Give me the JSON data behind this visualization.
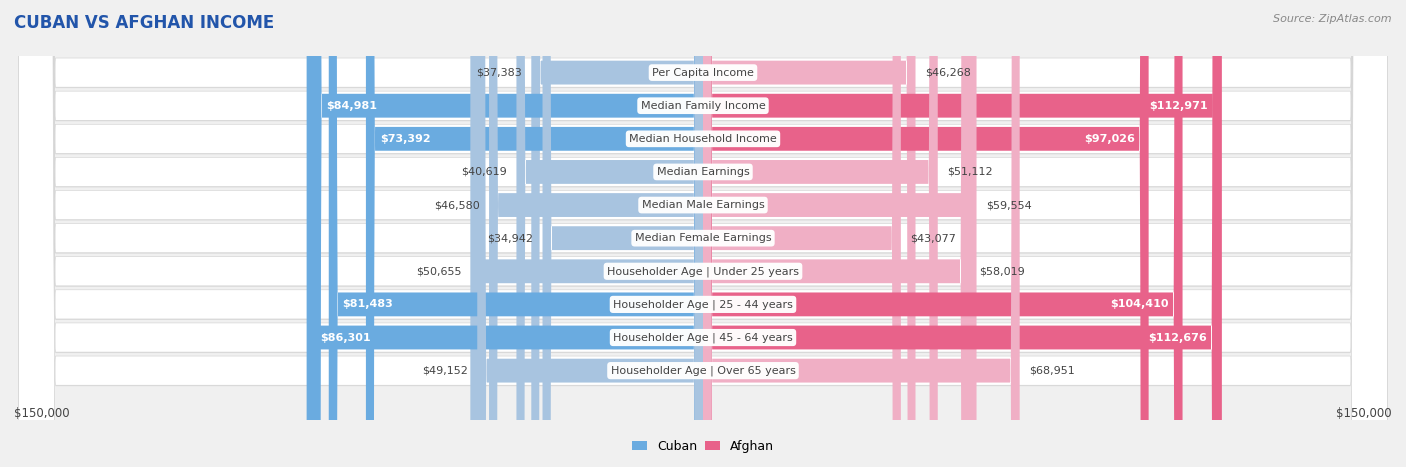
{
  "title": "CUBAN VS AFGHAN INCOME",
  "source": "Source: ZipAtlas.com",
  "categories": [
    "Per Capita Income",
    "Median Family Income",
    "Median Household Income",
    "Median Earnings",
    "Median Male Earnings",
    "Median Female Earnings",
    "Householder Age | Under 25 years",
    "Householder Age | 25 - 44 years",
    "Householder Age | 45 - 64 years",
    "Householder Age | Over 65 years"
  ],
  "cuban_values": [
    37383,
    84981,
    73392,
    40619,
    46580,
    34942,
    50655,
    81483,
    86301,
    49152
  ],
  "afghan_values": [
    46268,
    112971,
    97026,
    51112,
    59554,
    43077,
    58019,
    104410,
    112676,
    68951
  ],
  "cuban_labels": [
    "$37,383",
    "$84,981",
    "$73,392",
    "$40,619",
    "$46,580",
    "$34,942",
    "$50,655",
    "$81,483",
    "$86,301",
    "$49,152"
  ],
  "afghan_labels": [
    "$46,268",
    "$112,971",
    "$97,026",
    "$51,112",
    "$59,554",
    "$43,077",
    "$58,019",
    "$104,410",
    "$112,676",
    "$68,951"
  ],
  "cuban_color_light": "#a8c4e0",
  "cuban_color_dark": "#6aabe0",
  "afghan_color_light": "#f0afc5",
  "afghan_color_dark": "#e8628a",
  "cuban_dark_threshold": 70000,
  "afghan_dark_threshold": 90000,
  "max_value": 150000,
  "axis_label": "$150,000",
  "background_color": "#f0f0f0",
  "row_bg_color": "#ffffff",
  "row_border_color": "#d0d0d0",
  "title_fontsize": 12,
  "source_fontsize": 8,
  "label_fontsize": 8,
  "category_fontsize": 8,
  "legend_fontsize": 9
}
